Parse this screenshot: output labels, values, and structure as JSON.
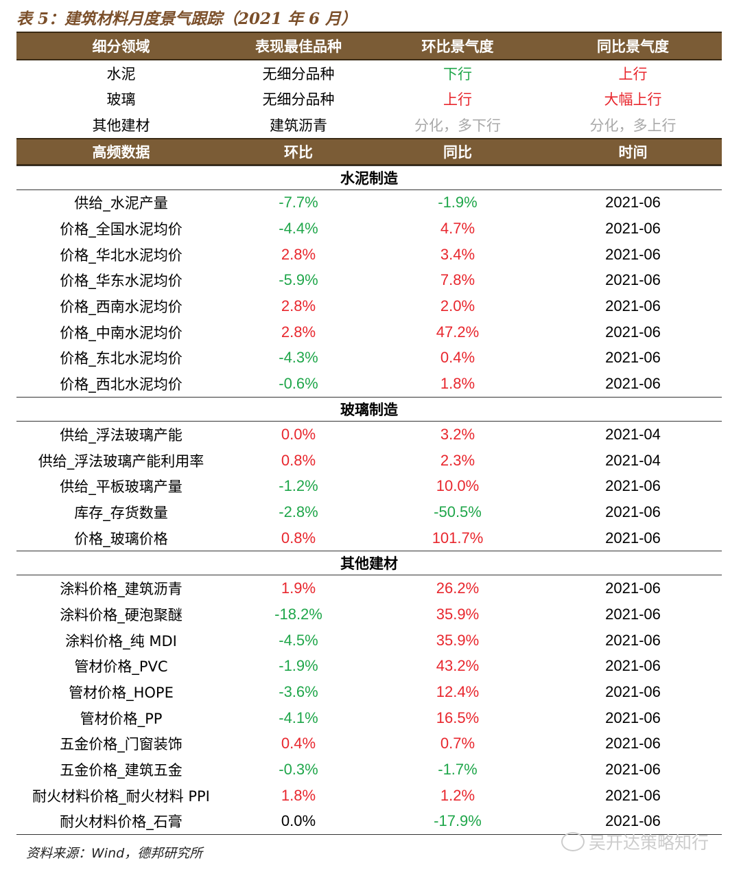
{
  "title": "表 5：建筑材料月度景气跟踪（2021 年 6 月）",
  "header1": [
    "细分领域",
    "表现最佳品种",
    "环比景气度",
    "同比景气度"
  ],
  "summary": [
    {
      "field": "水泥",
      "best": "无细分品种",
      "mom": "下行",
      "mom_trend": "down",
      "yoy": "上行",
      "yoy_trend": "up"
    },
    {
      "field": "玻璃",
      "best": "无细分品种",
      "mom": "上行",
      "mom_trend": "up",
      "yoy": "大幅上行",
      "yoy_trend": "up"
    },
    {
      "field": "其他建材",
      "best": "建筑沥青",
      "mom": "分化，多下行",
      "mom_trend": "gray",
      "yoy": "分化，多上行",
      "yoy_trend": "gray"
    }
  ],
  "header2": [
    "高频数据",
    "环比",
    "同比",
    "时间"
  ],
  "sections": [
    {
      "name": "水泥制造",
      "rows": [
        {
          "item": "供给_水泥产量",
          "mom": "-7.7%",
          "mom_c": "down",
          "yoy": "-1.9%",
          "yoy_c": "down",
          "time": "2021-06"
        },
        {
          "item": "价格_全国水泥均价",
          "mom": "-4.4%",
          "mom_c": "down",
          "yoy": "4.7%",
          "yoy_c": "up",
          "time": "2021-06"
        },
        {
          "item": "价格_华北水泥均价",
          "mom": "2.8%",
          "mom_c": "up",
          "yoy": "3.4%",
          "yoy_c": "up",
          "time": "2021-06"
        },
        {
          "item": "价格_华东水泥均价",
          "mom": "-5.9%",
          "mom_c": "down",
          "yoy": "7.8%",
          "yoy_c": "up",
          "time": "2021-06"
        },
        {
          "item": "价格_西南水泥均价",
          "mom": "2.8%",
          "mom_c": "up",
          "yoy": "2.0%",
          "yoy_c": "up",
          "time": "2021-06"
        },
        {
          "item": "价格_中南水泥均价",
          "mom": "2.8%",
          "mom_c": "up",
          "yoy": "47.2%",
          "yoy_c": "up",
          "time": "2021-06"
        },
        {
          "item": "价格_东北水泥均价",
          "mom": "-4.3%",
          "mom_c": "down",
          "yoy": "0.4%",
          "yoy_c": "up",
          "time": "2021-06"
        },
        {
          "item": "价格_西北水泥均价",
          "mom": "-0.6%",
          "mom_c": "down",
          "yoy": "1.8%",
          "yoy_c": "up",
          "time": "2021-06"
        }
      ]
    },
    {
      "name": "玻璃制造",
      "rows": [
        {
          "item": "供给_浮法玻璃产能",
          "mom": "0.0%",
          "mom_c": "up",
          "yoy": "3.2%",
          "yoy_c": "up",
          "time": "2021-04"
        },
        {
          "item": "供给_浮法玻璃产能利用率",
          "mom": "0.8%",
          "mom_c": "up",
          "yoy": "2.3%",
          "yoy_c": "up",
          "time": "2021-04"
        },
        {
          "item": "供给_平板玻璃产量",
          "mom": "-1.2%",
          "mom_c": "down",
          "yoy": "10.0%",
          "yoy_c": "up",
          "time": "2021-06"
        },
        {
          "item": "库存_存货数量",
          "mom": "-2.8%",
          "mom_c": "down",
          "yoy": "-50.5%",
          "yoy_c": "down",
          "time": "2021-06"
        },
        {
          "item": "价格_玻璃价格",
          "mom": "0.8%",
          "mom_c": "up",
          "yoy": "101.7%",
          "yoy_c": "up",
          "time": "2021-06"
        }
      ]
    },
    {
      "name": "其他建材",
      "rows": [
        {
          "item": "涂料价格_建筑沥青",
          "mom": "1.9%",
          "mom_c": "up",
          "yoy": "26.2%",
          "yoy_c": "up",
          "time": "2021-06"
        },
        {
          "item": "涂料价格_硬泡聚醚",
          "mom": "-18.2%",
          "mom_c": "down",
          "yoy": "35.9%",
          "yoy_c": "up",
          "time": "2021-06"
        },
        {
          "item": "涂料价格_纯 MDI",
          "mom": "-4.5%",
          "mom_c": "down",
          "yoy": "35.9%",
          "yoy_c": "up",
          "time": "2021-06"
        },
        {
          "item": "管材价格_PVC",
          "mom": "-1.9%",
          "mom_c": "down",
          "yoy": "43.2%",
          "yoy_c": "up",
          "time": "2021-06"
        },
        {
          "item": "管材价格_HOPE",
          "mom": "-3.6%",
          "mom_c": "down",
          "yoy": "12.4%",
          "yoy_c": "up",
          "time": "2021-06"
        },
        {
          "item": "管材价格_PP",
          "mom": "-4.1%",
          "mom_c": "down",
          "yoy": "16.5%",
          "yoy_c": "up",
          "time": "2021-06"
        },
        {
          "item": "五金价格_门窗装饰",
          "mom": "0.4%",
          "mom_c": "up",
          "yoy": "0.7%",
          "yoy_c": "up",
          "time": "2021-06"
        },
        {
          "item": "五金价格_建筑五金",
          "mom": "-0.3%",
          "mom_c": "down",
          "yoy": "-1.7%",
          "yoy_c": "down",
          "time": "2021-06"
        },
        {
          "item": "耐火材料价格_耐火材料 PPI",
          "mom": "1.8%",
          "mom_c": "up",
          "yoy": "1.2%",
          "yoy_c": "up",
          "time": "2021-06"
        },
        {
          "item": "耐火材料价格_石膏",
          "mom": "0.0%",
          "mom_c": "neutral",
          "yoy": "-17.9%",
          "yoy_c": "down",
          "time": "2021-06"
        }
      ]
    }
  ],
  "source": "资料来源：Wind，德邦研究所",
  "watermark": "吴开达策略知行",
  "watermark_icon": "wechat-icon",
  "colors": {
    "header_bg": "#7b5c36",
    "up": "#e8262d",
    "down": "#1fa64a",
    "gray": "#a8a8a8",
    "title": "#7b4f2a"
  }
}
